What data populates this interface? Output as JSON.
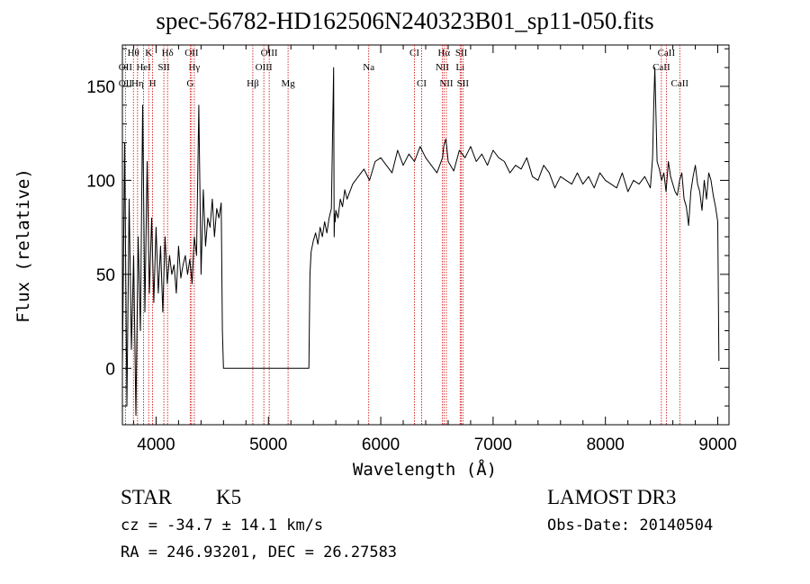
{
  "chart_data": {
    "type": "line",
    "title": "spec-56782-HD162506N240323B01_sp11-050.fits",
    "xlabel": "Wavelength (Å)",
    "ylabel": "Flux (relative)",
    "xlim": [
      3700,
      9100
    ],
    "ylim": [
      -30,
      172
    ],
    "xticks": [
      4000,
      5000,
      6000,
      7000,
      8000,
      9000
    ],
    "yticks": [
      0,
      50,
      100,
      150
    ],
    "series": [
      {
        "name": "flux",
        "x": [
          3700,
          3720,
          3740,
          3760,
          3780,
          3800,
          3820,
          3840,
          3860,
          3880,
          3900,
          3920,
          3940,
          3960,
          3980,
          4000,
          4020,
          4040,
          4060,
          4080,
          4100,
          4120,
          4140,
          4160,
          4180,
          4200,
          4220,
          4240,
          4260,
          4280,
          4300,
          4320,
          4340,
          4360,
          4380,
          4400,
          4420,
          4440,
          4460,
          4480,
          4500,
          4520,
          4540,
          4560,
          4580,
          4590,
          4600,
          4800,
          5000,
          5200,
          5360,
          5370,
          5380,
          5400,
          5420,
          5440,
          5460,
          5480,
          5500,
          5520,
          5540,
          5560,
          5580,
          5585,
          5590,
          5595,
          5600,
          5620,
          5640,
          5660,
          5680,
          5700,
          5750,
          5800,
          5850,
          5900,
          5950,
          6000,
          6050,
          6100,
          6150,
          6200,
          6250,
          6300,
          6350,
          6400,
          6450,
          6500,
          6550,
          6560,
          6570,
          6580,
          6600,
          6650,
          6700,
          6750,
          6800,
          6850,
          6900,
          6950,
          7000,
          7050,
          7100,
          7150,
          7200,
          7250,
          7300,
          7350,
          7400,
          7450,
          7500,
          7550,
          7600,
          7650,
          7700,
          7750,
          7800,
          7850,
          7900,
          7950,
          8000,
          8050,
          8100,
          8150,
          8200,
          8250,
          8300,
          8350,
          8400,
          8420,
          8430,
          8440,
          8460,
          8480,
          8500,
          8520,
          8540,
          8560,
          8580,
          8600,
          8620,
          8640,
          8660,
          8680,
          8700,
          8720,
          8740,
          8760,
          8780,
          8800,
          8820,
          8840,
          8860,
          8880,
          8900,
          8920,
          8940,
          8960,
          8980,
          9000,
          9010
        ],
        "y": [
          0,
          120,
          -20,
          90,
          10,
          60,
          -25,
          70,
          20,
          140,
          30,
          110,
          40,
          80,
          35,
          75,
          40,
          65,
          30,
          70,
          45,
          60,
          50,
          55,
          40,
          65,
          48,
          55,
          60,
          50,
          58,
          45,
          70,
          60,
          140,
          50,
          95,
          65,
          80,
          75,
          90,
          70,
          85,
          80,
          88,
          20,
          0,
          0,
          0,
          0,
          0,
          50,
          62,
          68,
          72,
          66,
          75,
          70,
          78,
          72,
          80,
          85,
          160,
          70,
          82,
          78,
          84,
          80,
          90,
          86,
          95,
          90,
          98,
          102,
          106,
          100,
          110,
          112,
          108,
          104,
          116,
          108,
          114,
          110,
          118,
          112,
          108,
          104,
          112,
          118,
          120,
          122,
          110,
          105,
          116,
          112,
          118,
          110,
          114,
          108,
          116,
          112,
          110,
          104,
          108,
          106,
          112,
          102,
          100,
          108,
          104,
          96,
          102,
          100,
          98,
          104,
          98,
          102,
          96,
          104,
          100,
          98,
          96,
          104,
          94,
          100,
          98,
          102,
          96,
          112,
          140,
          160,
          110,
          106,
          100,
          104,
          94,
          110,
          102,
          98,
          94,
          92,
          100,
          104,
          90,
          86,
          76,
          94,
          102,
          108,
          98,
          94,
          84,
          100,
          90,
          104,
          100,
          92,
          86,
          78,
          4
        ]
      }
    ],
    "lines_top": [
      {
        "label": "Hθ",
        "x": 3798
      },
      {
        "label": "K",
        "x": 3934
      },
      {
        "label": "Hδ",
        "x": 4102
      },
      {
        "label": "OII",
        "x": 4316
      },
      {
        "label": "OIII",
        "x": 5007
      },
      {
        "label": "CI",
        "x": 6300
      },
      {
        "label": "Hα",
        "x": 6563
      },
      {
        "label": "SII",
        "x": 6717
      },
      {
        "label": "CaII",
        "x": 8542
      }
    ],
    "lines_mid": [
      {
        "label": "OII",
        "x": 3727
      },
      {
        "label": "HeI",
        "x": 3889
      },
      {
        "label": "SII",
        "x": 4069
      },
      {
        "label": "Hγ",
        "x": 4340
      },
      {
        "label": "OIII",
        "x": 4959
      },
      {
        "label": "Na",
        "x": 5893
      },
      {
        "label": "NII",
        "x": 6548
      },
      {
        "label": "Li",
        "x": 6707
      },
      {
        "label": "CaII",
        "x": 8498
      }
    ],
    "lines_low": [
      {
        "label": "OII",
        "x": 3727
      },
      {
        "label": "Hη",
        "x": 3835
      },
      {
        "label": "H",
        "x": 3969
      },
      {
        "label": "G",
        "x": 4304
      },
      {
        "label": "Hβ",
        "x": 4861
      },
      {
        "label": "Mg",
        "x": 5175
      },
      {
        "label": "CI",
        "x": 6364
      },
      {
        "label": "NII",
        "x": 6584
      },
      {
        "label": "SII",
        "x": 6731
      },
      {
        "label": "CaII",
        "x": 8662
      }
    ]
  },
  "info": {
    "object_class": "STAR",
    "subclass": "K5",
    "survey": "LAMOST DR3",
    "cz": "cz = -34.7 ± 14.1 km/s",
    "obs_date": "Obs-Date: 20140504",
    "coords": "RA = 246.93201, DEC =  26.27583"
  },
  "colors": {
    "line": "#000000",
    "marker": "#cc0000",
    "axis": "#000000"
  }
}
